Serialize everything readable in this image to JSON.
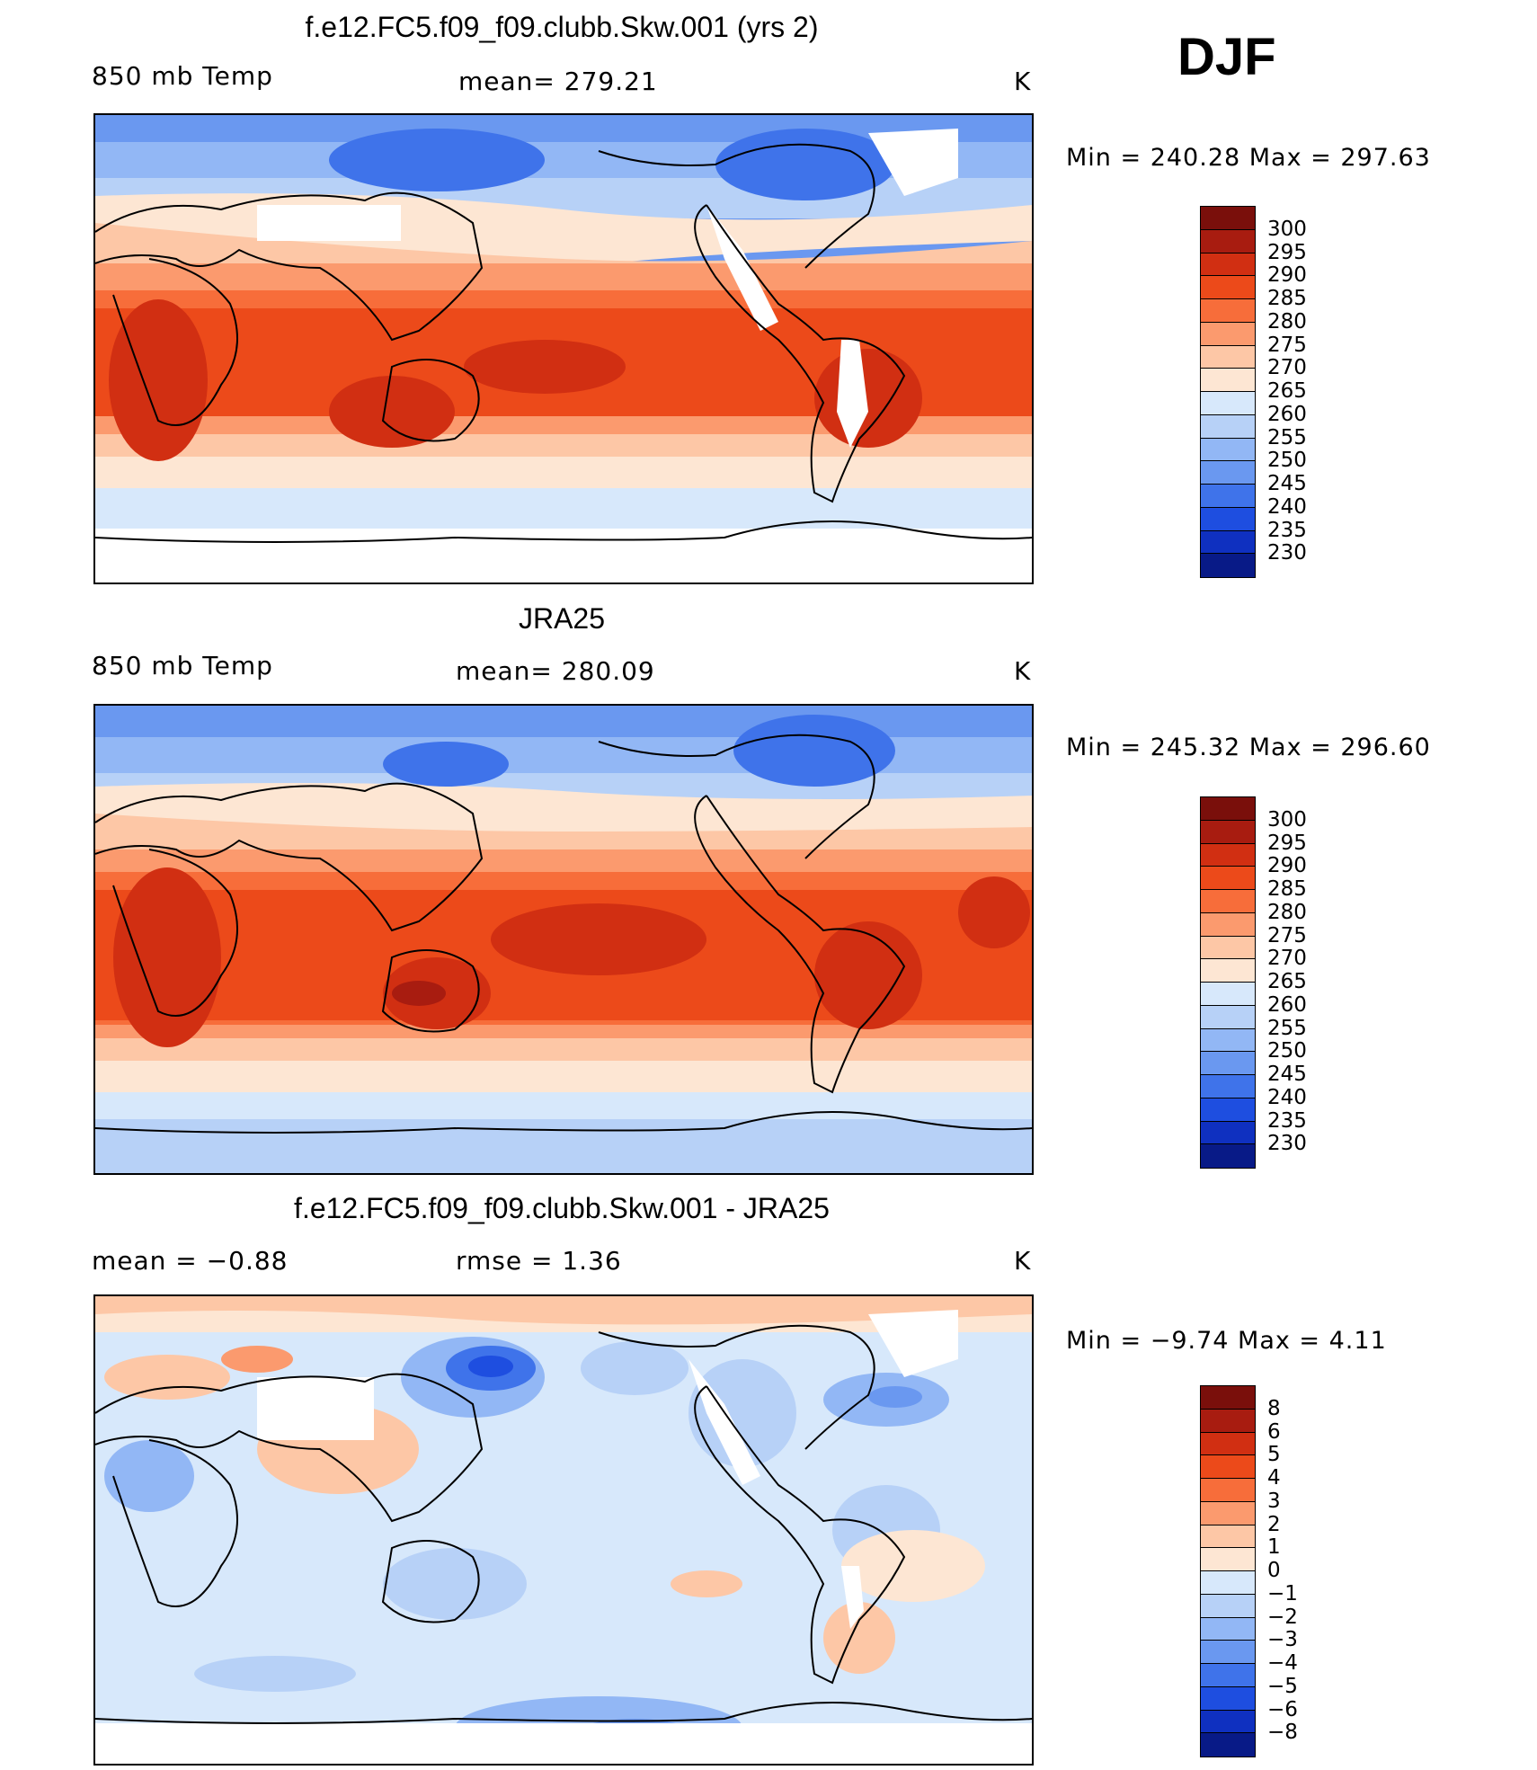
{
  "season": "DJF",
  "unit": "K",
  "panels": [
    {
      "title": "f.e12.FC5.f09_f09.clubb.Skw.001 (yrs 2)",
      "left_label": "850 mb Temp",
      "center_label": "mean=  279.21",
      "unit_label": "K",
      "minmax": "Min  =  240.28  Max  =  297.63"
    },
    {
      "title": "JRA25",
      "left_label": "850 mb Temp",
      "center_label": "mean=  280.09",
      "unit_label": "K",
      "minmax": "Min  =  245.32  Max  =  296.60"
    },
    {
      "title": "f.e12.FC5.f09_f09.clubb.Skw.001 - JRA25",
      "left_label": "mean  =     −0.88",
      "center_label": "rmse  =      1.36",
      "unit_label": "K",
      "minmax": "Min  =     −9.74  Max  =      4.11"
    }
  ],
  "colorbars": {
    "temperature": {
      "ticks": [
        "300",
        "295",
        "290",
        "285",
        "280",
        "275",
        "270",
        "265",
        "260",
        "255",
        "250",
        "245",
        "240",
        "235",
        "230"
      ],
      "colors": [
        "#7a0f0b",
        "#a81c10",
        "#d12f12",
        "#ec4a1a",
        "#f76d3a",
        "#fb9a6e",
        "#fdc7a6",
        "#fde6d3",
        "#d7e8fb",
        "#b7d1f7",
        "#92b7f5",
        "#6a98f0",
        "#3f73ea",
        "#1e4ee0",
        "#0f30c0",
        "#081a87"
      ]
    },
    "difference": {
      "ticks": [
        "8",
        "6",
        "5",
        "4",
        "3",
        "2",
        "1",
        "0",
        "−1",
        "−2",
        "−3",
        "−4",
        "−5",
        "−6",
        "−8"
      ],
      "colors": [
        "#7a0f0b",
        "#a81c10",
        "#d12f12",
        "#ec4a1a",
        "#f76d3a",
        "#fb9a6e",
        "#fdc7a6",
        "#fde6d3",
        "#d7e8fb",
        "#b7d1f7",
        "#92b7f5",
        "#6a98f0",
        "#3f73ea",
        "#1e4ee0",
        "#0f30c0",
        "#081a87"
      ]
    }
  }
}
